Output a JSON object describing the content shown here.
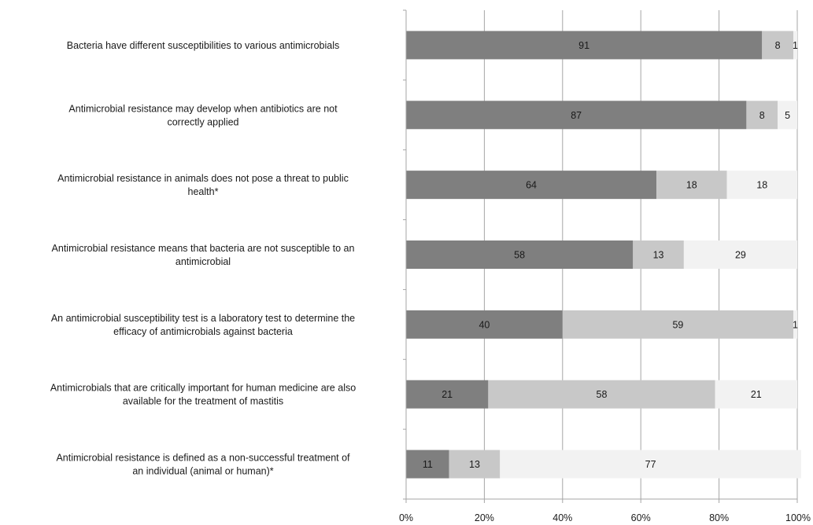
{
  "chart_data": {
    "type": "bar",
    "orientation": "horizontal",
    "stacked": true,
    "percent": true,
    "categories": [
      "Bacteria have different susceptibilities to various antimicrobials",
      "Antimicrobial resistance may develop when antibiotics are not correctly applied",
      "Antimicrobial resistance in animals does not pose a threat to public health*",
      "Antimicrobial resistance means that bacteria are not susceptible to an antimicrobial",
      "An antimicrobial susceptibility test is a laboratory test to determine the efficacy of antimicrobials against bacteria",
      "Antimicrobials that are critically important for human medicine are also available for the treatment of mastitis",
      "Antimicrobial resistance is defined as a non-successful treatment of an individual (animal or human)*"
    ],
    "category_lines": [
      [
        "Bacteria have different susceptibilities to various antimicrobials"
      ],
      [
        "Antimicrobial resistance may develop when antibiotics are not",
        "correctly applied"
      ],
      [
        "Antimicrobial resistance in animals does not pose a threat to public",
        "health*"
      ],
      [
        "Antimicrobial resistance means that bacteria are not susceptible to an",
        "antimicrobial"
      ],
      [
        "An antimicrobial susceptibility test is a laboratory test to determine the",
        "efficacy of antimicrobials against bacteria"
      ],
      [
        "Antimicrobials that are critically important for human medicine are also",
        "available for the treatment of mastitis"
      ],
      [
        "Antimicrobial resistance is defined as a non-successful treatment of",
        "an individual (animal or human)*"
      ]
    ],
    "series": [
      {
        "values": [
          91,
          87,
          64,
          58,
          40,
          21,
          11
        ],
        "color": "#7f7f7f"
      },
      {
        "values": [
          8,
          8,
          18,
          13,
          59,
          58,
          13
        ],
        "color": "#c8c8c8"
      },
      {
        "values": [
          1,
          5,
          18,
          29,
          1,
          21,
          77
        ],
        "color": "#f2f2f2"
      }
    ],
    "xlim": [
      0,
      100
    ],
    "xticks": [
      "0%",
      "20%",
      "40%",
      "60%",
      "80%",
      "100%"
    ],
    "title": "",
    "xlabel": "",
    "ylabel": "",
    "grid": true,
    "legend": "none"
  }
}
